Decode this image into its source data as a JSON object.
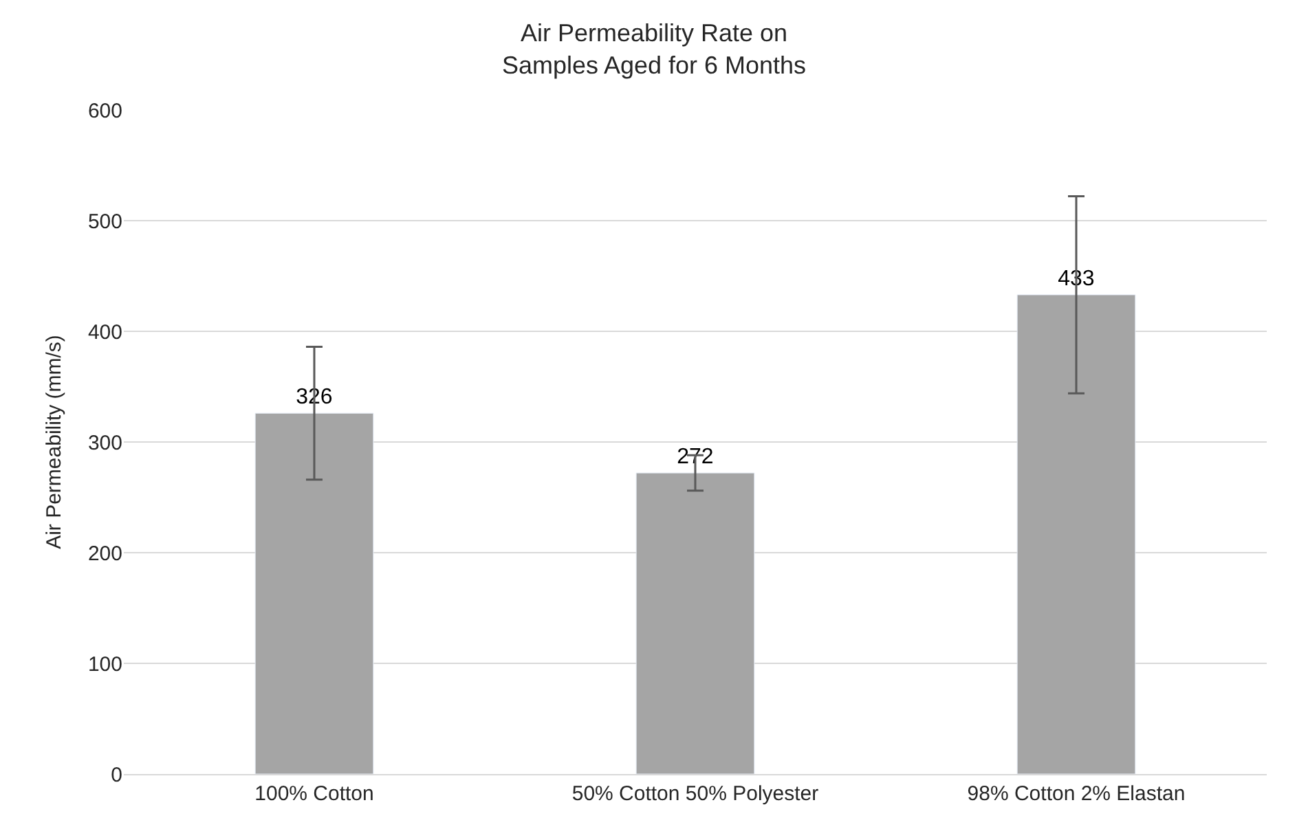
{
  "chart_data": {
    "type": "bar",
    "title": "Air Permeability Rate on\nSamples Aged for 6 Months",
    "ylabel": "Air Permeability (mm/s)",
    "categories": [
      "100% Cotton",
      "50% Cotton 50% Polyester",
      "98% Cotton 2% Elastan"
    ],
    "values": [
      326,
      272,
      433
    ],
    "errors": [
      60,
      16,
      89
    ],
    "color": "#a5a5a5",
    "ylim": [
      0,
      600
    ],
    "yticks": [
      0,
      100,
      200,
      300,
      400,
      500,
      600
    ],
    "grid": "y",
    "data_labels": true
  }
}
